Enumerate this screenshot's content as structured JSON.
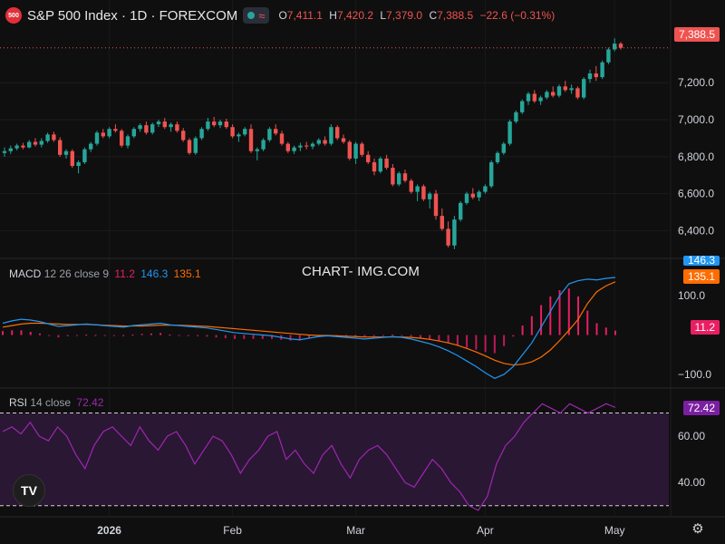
{
  "header": {
    "logo_text": "500",
    "symbol": "S&P 500 Index · 1D · FOREXCOM",
    "o_label": "O",
    "o": "7,411.1",
    "h_label": "H",
    "h": "7,420.2",
    "l_label": "L",
    "l": "7,379.0",
    "c_label": "C",
    "c": "7,388.5",
    "change": "−22.6 (−0.31%)"
  },
  "price_tag": "7,388.5",
  "watermark": "CHART- IMG.COM",
  "macd_legend": {
    "label": "MACD",
    "params": "12 26 close 9",
    "hist": "11.2",
    "macd": "146.3",
    "signal": "135.1"
  },
  "rsi_legend": {
    "label": "RSI",
    "params": "14 close",
    "value": "72.42"
  },
  "colors": {
    "up": "#26a69a",
    "down": "#ef5350",
    "macd": "#2196f3",
    "signal": "#ff6d00",
    "hist": "#e91e63",
    "rsi": "#9c27b0",
    "background": "#0f0f0f",
    "text": "#d1d4dc"
  },
  "chart_data": [
    {
      "type": "candlestick",
      "title": "S&P 500 Index · 1D · FOREXCOM",
      "y_ticks": [
        6400,
        6600,
        6800,
        7000,
        7200
      ],
      "y_tick_labels": [
        "6,400.0",
        "6,600.0",
        "6,800.0",
        "7,000.0",
        "7,200.0"
      ],
      "ylim": [
        6260,
        7500
      ],
      "x_tick_labels": [
        "2026",
        "Feb",
        "Mar",
        "Apr",
        "May"
      ],
      "x_tick_index": [
        17,
        37,
        57,
        78,
        99
      ],
      "last_price": 7388.5,
      "ohlc": [
        [
          6820,
          6850,
          6800,
          6830
        ],
        [
          6830,
          6860,
          6815,
          6845
        ],
        [
          6845,
          6870,
          6835,
          6860
        ],
        [
          6860,
          6875,
          6840,
          6850
        ],
        [
          6850,
          6890,
          6845,
          6880
        ],
        [
          6880,
          6900,
          6855,
          6865
        ],
        [
          6865,
          6900,
          6850,
          6885
        ],
        [
          6885,
          6930,
          6875,
          6920
        ],
        [
          6920,
          6935,
          6880,
          6890
        ],
        [
          6890,
          6905,
          6800,
          6810
        ],
        [
          6810,
          6840,
          6790,
          6830
        ],
        [
          6830,
          6840,
          6740,
          6750
        ],
        [
          6750,
          6780,
          6710,
          6770
        ],
        [
          6770,
          6850,
          6760,
          6840
        ],
        [
          6840,
          6880,
          6825,
          6870
        ],
        [
          6870,
          6940,
          6860,
          6930
        ],
        [
          6930,
          6950,
          6900,
          6910
        ],
        [
          6910,
          6960,
          6900,
          6950
        ],
        [
          6950,
          6975,
          6930,
          6940
        ],
        [
          6940,
          6950,
          6850,
          6860
        ],
        [
          6860,
          6920,
          6845,
          6910
        ],
        [
          6910,
          6960,
          6900,
          6950
        ],
        [
          6950,
          6980,
          6935,
          6970
        ],
        [
          6970,
          6990,
          6920,
          6930
        ],
        [
          6930,
          6985,
          6920,
          6975
        ],
        [
          6975,
          7000,
          6960,
          6990
        ],
        [
          6990,
          7010,
          6950,
          6960
        ],
        [
          6960,
          6985,
          6935,
          6975
        ],
        [
          6975,
          6990,
          6930,
          6940
        ],
        [
          6940,
          6955,
          6880,
          6890
        ],
        [
          6890,
          6900,
          6810,
          6820
        ],
        [
          6820,
          6910,
          6810,
          6900
        ],
        [
          6900,
          6960,
          6890,
          6950
        ],
        [
          6950,
          7010,
          6940,
          6990
        ],
        [
          6990,
          7015,
          6960,
          6970
        ],
        [
          6970,
          7000,
          6955,
          6990
        ],
        [
          6990,
          7005,
          6950,
          6960
        ],
        [
          6960,
          6975,
          6900,
          6910
        ],
        [
          6910,
          6930,
          6880,
          6920
        ],
        [
          6920,
          6960,
          6910,
          6950
        ],
        [
          6950,
          6975,
          6820,
          6830
        ],
        [
          6830,
          6850,
          6780,
          6840
        ],
        [
          6840,
          6900,
          6830,
          6890
        ],
        [
          6890,
          6960,
          6880,
          6950
        ],
        [
          6950,
          6975,
          6915,
          6925
        ],
        [
          6925,
          6940,
          6860,
          6870
        ],
        [
          6870,
          6880,
          6820,
          6830
        ],
        [
          6830,
          6860,
          6815,
          6850
        ],
        [
          6850,
          6875,
          6830,
          6860
        ],
        [
          6860,
          6880,
          6840,
          6855
        ],
        [
          6855,
          6880,
          6840,
          6870
        ],
        [
          6870,
          6900,
          6860,
          6890
        ],
        [
          6890,
          6910,
          6860,
          6870
        ],
        [
          6870,
          6975,
          6860,
          6960
        ],
        [
          6960,
          6970,
          6890,
          6900
        ],
        [
          6900,
          6920,
          6870,
          6880
        ],
        [
          6880,
          6890,
          6780,
          6790
        ],
        [
          6790,
          6880,
          6760,
          6870
        ],
        [
          6870,
          6880,
          6800,
          6810
        ],
        [
          6810,
          6830,
          6760,
          6770
        ],
        [
          6770,
          6790,
          6700,
          6720
        ],
        [
          6720,
          6800,
          6710,
          6790
        ],
        [
          6790,
          6810,
          6730,
          6740
        ],
        [
          6740,
          6760,
          6640,
          6650
        ],
        [
          6650,
          6720,
          6640,
          6710
        ],
        [
          6710,
          6730,
          6660,
          6670
        ],
        [
          6670,
          6680,
          6600,
          6610
        ],
        [
          6610,
          6650,
          6560,
          6640
        ],
        [
          6640,
          6650,
          6560,
          6570
        ],
        [
          6570,
          6610,
          6520,
          6600
        ],
        [
          6600,
          6620,
          6460,
          6480
        ],
        [
          6480,
          6520,
          6400,
          6410
        ],
        [
          6410,
          6450,
          6310,
          6320
        ],
        [
          6320,
          6480,
          6300,
          6460
        ],
        [
          6460,
          6560,
          6450,
          6550
        ],
        [
          6550,
          6610,
          6540,
          6600
        ],
        [
          6600,
          6630,
          6570,
          6580
        ],
        [
          6580,
          6620,
          6560,
          6610
        ],
        [
          6610,
          6650,
          6600,
          6640
        ],
        [
          6640,
          6780,
          6630,
          6770
        ],
        [
          6770,
          6830,
          6760,
          6820
        ],
        [
          6820,
          6880,
          6810,
          6870
        ],
        [
          6870,
          7000,
          6860,
          6990
        ],
        [
          6990,
          7050,
          6980,
          7040
        ],
        [
          7040,
          7110,
          7030,
          7100
        ],
        [
          7100,
          7150,
          7080,
          7140
        ],
        [
          7140,
          7160,
          7090,
          7100
        ],
        [
          7100,
          7130,
          7080,
          7120
        ],
        [
          7120,
          7160,
          7110,
          7150
        ],
        [
          7150,
          7180,
          7120,
          7130
        ],
        [
          7130,
          7190,
          7120,
          7180
        ],
        [
          7180,
          7210,
          7150,
          7160
        ],
        [
          7160,
          7190,
          7140,
          7170
        ],
        [
          7170,
          7180,
          7110,
          7120
        ],
        [
          7120,
          7230,
          7110,
          7220
        ],
        [
          7220,
          7270,
          7200,
          7250
        ],
        [
          7250,
          7290,
          7210,
          7230
        ],
        [
          7230,
          7320,
          7220,
          7310
        ],
        [
          7310,
          7390,
          7300,
          7380
        ],
        [
          7380,
          7440,
          7370,
          7411.1
        ],
        [
          7411.1,
          7420.2,
          7379.0,
          7388.5
        ]
      ]
    },
    {
      "type": "line",
      "title": "MACD 12 26 close 9",
      "y_ticks": [
        100,
        -100
      ],
      "y_tick_labels": [
        "100.0",
        "−100.0"
      ],
      "ylim": [
        -130,
        190
      ],
      "series": [
        {
          "name": "MACD",
          "values": [
            30,
            36,
            40,
            38,
            34,
            28,
            22,
            24,
            26,
            28,
            26,
            24,
            22,
            20,
            24,
            26,
            28,
            30,
            26,
            24,
            22,
            20,
            18,
            14,
            10,
            6,
            4,
            2,
            0,
            -2,
            -6,
            -10,
            -12,
            -8,
            -4,
            -2,
            -4,
            -6,
            -8,
            -10,
            -8,
            -6,
            -4,
            -6,
            -10,
            -16,
            -22,
            -30,
            -40,
            -52,
            -66,
            -80,
            -96,
            -110,
            -100,
            -80,
            -50,
            -20,
            20,
            60,
            100,
            130,
            138,
            142,
            140,
            144,
            146.3
          ]
        },
        {
          "name": "Signal",
          "values": [
            20,
            24,
            28,
            30,
            30,
            29,
            28,
            27,
            27,
            27,
            26,
            25,
            24,
            23,
            23,
            23,
            24,
            25,
            25,
            25,
            24,
            23,
            22,
            20,
            18,
            16,
            14,
            12,
            10,
            8,
            6,
            4,
            2,
            0,
            -1,
            -1,
            -2,
            -3,
            -4,
            -5,
            -5,
            -5,
            -5,
            -5,
            -6,
            -8,
            -11,
            -15,
            -20,
            -26,
            -34,
            -43,
            -53,
            -64,
            -72,
            -76,
            -74,
            -68,
            -56,
            -38,
            -14,
            12,
            40,
            80,
            110,
            125,
            135.1
          ]
        },
        {
          "name": "Histogram",
          "values": [
            10,
            12,
            12,
            8,
            4,
            -1,
            -6,
            -3,
            -1,
            1,
            0,
            -1,
            -2,
            -3,
            1,
            3,
            4,
            5,
            1,
            -1,
            -2,
            -3,
            -4,
            -6,
            -8,
            -10,
            -10,
            -10,
            -10,
            -10,
            -12,
            -14,
            -14,
            -8,
            -3,
            -1,
            -2,
            -3,
            -4,
            -5,
            -3,
            -1,
            1,
            -1,
            -4,
            -8,
            -11,
            -15,
            -20,
            -26,
            -32,
            -37,
            -43,
            -46,
            -28,
            -4,
            24,
            48,
            76,
            98,
            114,
            118,
            98,
            62,
            30,
            19,
            11.2
          ]
        }
      ]
    },
    {
      "type": "line",
      "title": "RSI 14 close",
      "y_ticks": [
        60,
        40
      ],
      "y_tick_labels": [
        "60.00",
        "40.00"
      ],
      "bands": [
        70,
        30
      ],
      "ylim": [
        26,
        80
      ],
      "series": [
        {
          "name": "RSI",
          "values": [
            62,
            64,
            61,
            66,
            60,
            58,
            64,
            60,
            52,
            46,
            56,
            62,
            64,
            60,
            56,
            64,
            58,
            54,
            60,
            62,
            56,
            48,
            54,
            60,
            58,
            52,
            44,
            50,
            54,
            60,
            62,
            50,
            54,
            48,
            44,
            52,
            56,
            48,
            42,
            50,
            54,
            56,
            52,
            46,
            40,
            38,
            44,
            50,
            46,
            40,
            36,
            30,
            28,
            34,
            48,
            56,
            60,
            66,
            70,
            74,
            72,
            70,
            74,
            72,
            70,
            72,
            74,
            72.42
          ]
        }
      ]
    }
  ]
}
